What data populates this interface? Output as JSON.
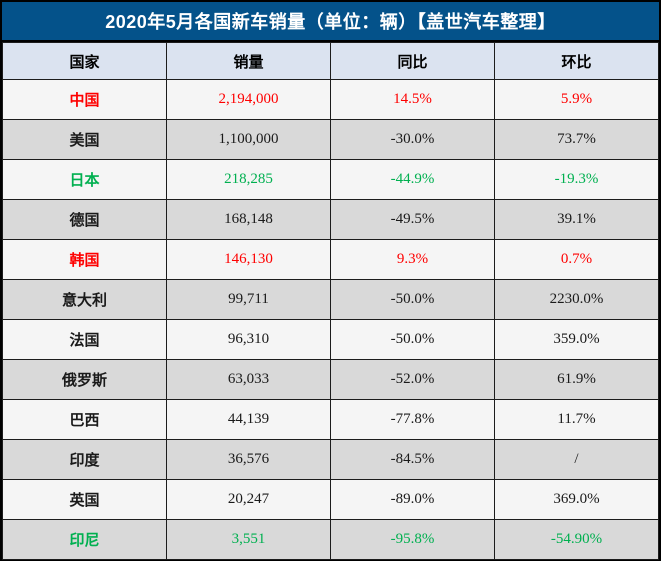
{
  "title": "2020年5月各国新车销量（单位：辆）【盖世汽车整理】",
  "table": {
    "headers": [
      "国家",
      "销量",
      "同比",
      "环比"
    ],
    "rows": [
      {
        "country": "中国",
        "sales": "2,194,000",
        "yoy": "14.5%",
        "mom": "5.9%",
        "color": "red",
        "shaded": false
      },
      {
        "country": "美国",
        "sales": "1,100,000",
        "yoy": "-30.0%",
        "mom": "73.7%",
        "color": "black",
        "shaded": true
      },
      {
        "country": "日本",
        "sales": "218,285",
        "yoy": "-44.9%",
        "mom": "-19.3%",
        "color": "green",
        "shaded": false
      },
      {
        "country": "德国",
        "sales": "168,148",
        "yoy": "-49.5%",
        "mom": "39.1%",
        "color": "black",
        "shaded": true
      },
      {
        "country": "韩国",
        "sales": "146,130",
        "yoy": "9.3%",
        "mom": "0.7%",
        "color": "red",
        "shaded": false
      },
      {
        "country": "意大利",
        "sales": "99,711",
        "yoy": "-50.0%",
        "mom": "2230.0%",
        "color": "black",
        "shaded": true
      },
      {
        "country": "法国",
        "sales": "96,310",
        "yoy": "-50.0%",
        "mom": "359.0%",
        "color": "black",
        "shaded": false
      },
      {
        "country": "俄罗斯",
        "sales": "63,033",
        "yoy": "-52.0%",
        "mom": "61.9%",
        "color": "black",
        "shaded": true
      },
      {
        "country": "巴西",
        "sales": "44,139",
        "yoy": "-77.8%",
        "mom": "11.7%",
        "color": "black",
        "shaded": false
      },
      {
        "country": "印度",
        "sales": "36,576",
        "yoy": "-84.5%",
        "mom": "/",
        "color": "black",
        "shaded": true
      },
      {
        "country": "英国",
        "sales": "20,247",
        "yoy": "-89.0%",
        "mom": "369.0%",
        "color": "black",
        "shaded": false
      },
      {
        "country": "印尼",
        "sales": "3,551",
        "yoy": "-95.8%",
        "mom": "-54.90%",
        "color": "green",
        "shaded": true
      }
    ]
  },
  "colors": {
    "title_bg": "#04528A",
    "title_text": "#FFFFFF",
    "header_bg": "#DBE3F0",
    "grid_border": "#1C1C1C",
    "row_light_bg": "#F5F5F5",
    "row_shaded_bg": "#D9D9D9",
    "positive_red": "#FE0000",
    "negative_green": "#00B050",
    "neutral_text": "#1A1A1A"
  },
  "chart_data": {
    "type": "table",
    "title": "2020年5月各国新车销量（单位：辆）【盖世汽车整理】",
    "columns": [
      "国家",
      "销量",
      "同比",
      "环比"
    ],
    "categories": [
      "中国",
      "美国",
      "日本",
      "德国",
      "韩国",
      "意大利",
      "法国",
      "俄罗斯",
      "巴西",
      "印度",
      "英国",
      "印尼"
    ],
    "series": [
      {
        "name": "销量",
        "values": [
          2194000,
          1100000,
          218285,
          168148,
          146130,
          99711,
          96310,
          63033,
          44139,
          36576,
          20247,
          3551
        ]
      },
      {
        "name": "同比",
        "values": [
          14.5,
          -30.0,
          -44.9,
          -49.5,
          9.3,
          -50.0,
          -50.0,
          -52.0,
          -77.8,
          -84.5,
          -89.0,
          -95.8
        ]
      },
      {
        "name": "环比",
        "values": [
          5.9,
          73.7,
          -19.3,
          39.1,
          0.7,
          2230.0,
          359.0,
          61.9,
          11.7,
          null,
          369.0,
          -54.9
        ]
      }
    ]
  }
}
